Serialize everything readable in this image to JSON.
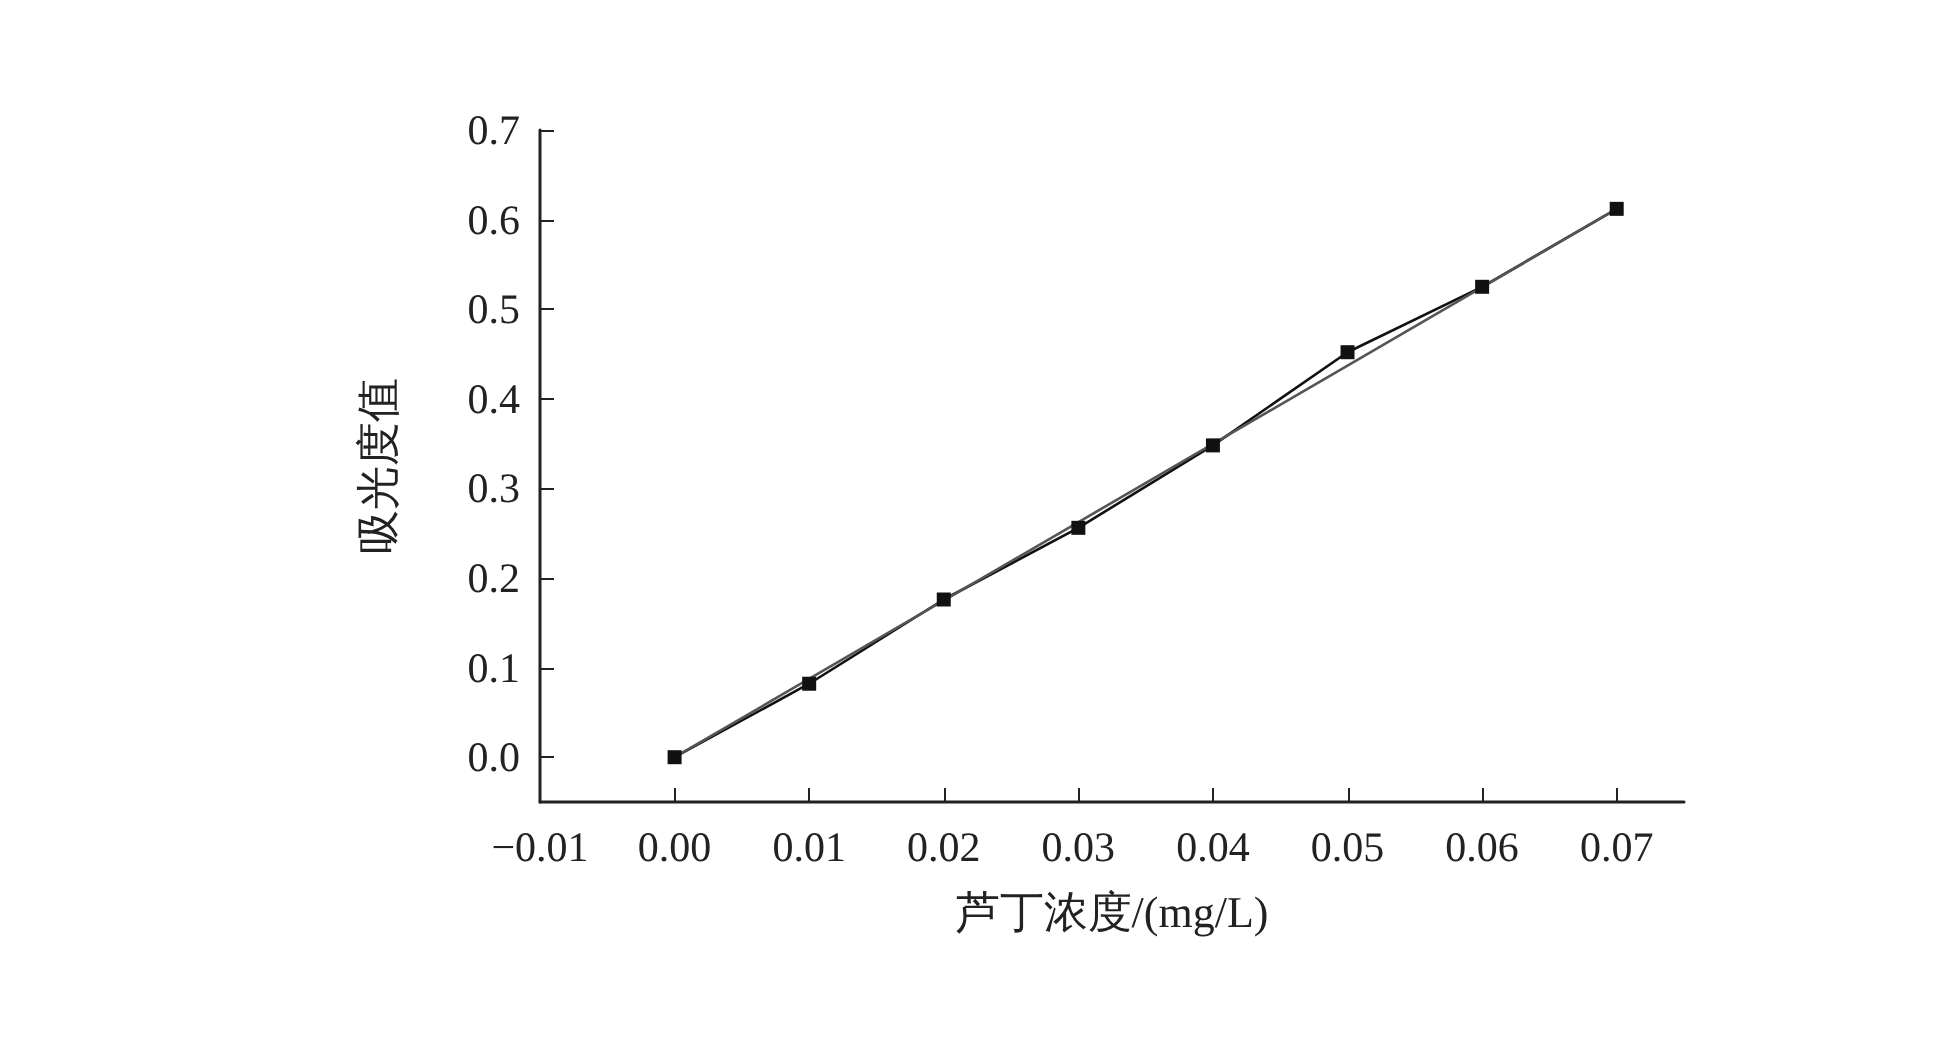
{
  "chart_data": {
    "type": "line",
    "xlabel": "芦丁浓度/(mg/L)",
    "ylabel": "吸光度值",
    "series": [
      {
        "color": "#111111",
        "marker": "square",
        "x": [
          0,
          0.01,
          0.02,
          0.03,
          0.04,
          0.05,
          0.06,
          0.07
        ],
        "values": [
          0.0,
          0.082,
          0.176,
          0.256,
          0.348,
          0.452,
          0.525,
          0.612
        ]
      },
      {
        "color": "#555555",
        "marker": "none",
        "x": [
          0,
          0.07
        ],
        "values": [
          0.0,
          0.612
        ]
      }
    ],
    "xlim": [
      -0.01,
      0.075
    ],
    "xticks": [
      {
        "value": -0.01,
        "label": "−0.01"
      },
      {
        "value": 0,
        "label": "0.00"
      },
      0.01,
      0.02,
      0.03,
      0.04,
      0.05,
      0.06,
      0.07
    ],
    "ylim": [
      -0.05,
      0.7
    ],
    "yticks": [
      {
        "value": 0,
        "label": "0.0"
      },
      0.1,
      0.2,
      0.3,
      0.4,
      0.5,
      0.6,
      0.7
    ],
    "grid": false
  }
}
